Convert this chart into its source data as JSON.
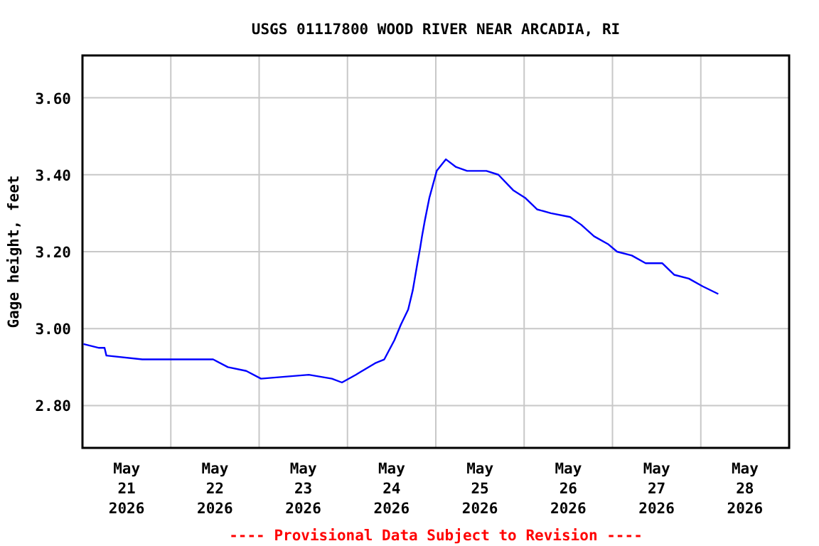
{
  "chart_data": {
    "type": "line",
    "title": "USGS 01117800 WOOD RIVER NEAR ARCADIA, RI",
    "ylabel": "Gage height, feet",
    "annotations": [
      "---- Provisional Data Subject to Revision ----"
    ],
    "xlim": [
      "2026-05-21T00:00",
      "2026-05-29T00:00"
    ],
    "xticks": [
      {
        "value": "2026-05-21T00:00",
        "label": null
      },
      {
        "value": "2026-05-21T12:00",
        "label": "May\n21\n2026"
      },
      {
        "value": "2026-05-22T00:00",
        "label": null
      },
      {
        "value": "2026-05-22T12:00",
        "label": "May\n22\n2026"
      },
      {
        "value": "2026-05-23T00:00",
        "label": null
      },
      {
        "value": "2026-05-23T12:00",
        "label": "May\n23\n2026"
      },
      {
        "value": "2026-05-24T00:00",
        "label": null
      },
      {
        "value": "2026-05-24T12:00",
        "label": "May\n24\n2026"
      },
      {
        "value": "2026-05-25T00:00",
        "label": null
      },
      {
        "value": "2026-05-25T12:00",
        "label": "May\n25\n2026"
      },
      {
        "value": "2026-05-26T00:00",
        "label": null
      },
      {
        "value": "2026-05-26T12:00",
        "label": "May\n26\n2026"
      },
      {
        "value": "2026-05-27T00:00",
        "label": null
      },
      {
        "value": "2026-05-27T12:00",
        "label": "May\n27\n2026"
      },
      {
        "value": "2026-05-28T00:00",
        "label": null
      },
      {
        "value": "2026-05-28T12:00",
        "label": "May\n28\n2026"
      },
      {
        "value": "2026-05-29T00:00",
        "label": null
      }
    ],
    "ylim": [
      2.69,
      3.71
    ],
    "yticks": [
      {
        "value": 2.8,
        "label": "2.80"
      },
      {
        "value": 3.0,
        "label": "3.00"
      },
      {
        "value": 3.2,
        "label": "3.20"
      },
      {
        "value": 3.4,
        "label": "3.40"
      },
      {
        "value": 3.6,
        "label": "3.60"
      }
    ],
    "grid": true,
    "marker": "none",
    "line_style": "solid",
    "series": [
      {
        "color": "#0000ff",
        "x": [
          "2026-05-21T00:15",
          "2026-05-21T04:30",
          "2026-05-21T06:00",
          "2026-05-21T06:30",
          "2026-05-21T16:15",
          "2026-05-22T11:30",
          "2026-05-22T15:30",
          "2026-05-22T20:30",
          "2026-05-23T00:30",
          "2026-05-23T13:30",
          "2026-05-23T19:45",
          "2026-05-23T22:30",
          "2026-05-24T02:15",
          "2026-05-24T07:30",
          "2026-05-24T10:00",
          "2026-05-24T12:45",
          "2026-05-24T14:30",
          "2026-05-24T16:30",
          "2026-05-24T17:45",
          "2026-05-24T19:00",
          "2026-05-24T19:45",
          "2026-05-24T20:15",
          "2026-05-24T21:00",
          "2026-05-24T22:15",
          "2026-05-25T00:15",
          "2026-05-25T02:45",
          "2026-05-25T05:30",
          "2026-05-25T08:30",
          "2026-05-25T13:45",
          "2026-05-25T17:00",
          "2026-05-25T21:00",
          "2026-05-26T00:15",
          "2026-05-26T03:30",
          "2026-05-26T07:15",
          "2026-05-26T12:30",
          "2026-05-26T15:30",
          "2026-05-26T19:00",
          "2026-05-26T22:45",
          "2026-05-27T01:15",
          "2026-05-27T05:15",
          "2026-05-27T09:00",
          "2026-05-27T13:30",
          "2026-05-27T16:45",
          "2026-05-27T20:45",
          "2026-05-28T00:30",
          "2026-05-28T04:45"
        ],
        "values": [
          2.96,
          2.95,
          2.95,
          2.93,
          2.92,
          2.92,
          2.9,
          2.89,
          2.87,
          2.88,
          2.87,
          2.86,
          2.88,
          2.91,
          2.92,
          2.97,
          3.01,
          3.05,
          3.1,
          3.17,
          3.21,
          3.24,
          3.28,
          3.34,
          3.41,
          3.44,
          3.42,
          3.41,
          3.41,
          3.4,
          3.36,
          3.34,
          3.31,
          3.3,
          3.29,
          3.27,
          3.24,
          3.22,
          3.2,
          3.19,
          3.17,
          3.17,
          3.14,
          3.13,
          3.11,
          3.09
        ]
      }
    ]
  }
}
